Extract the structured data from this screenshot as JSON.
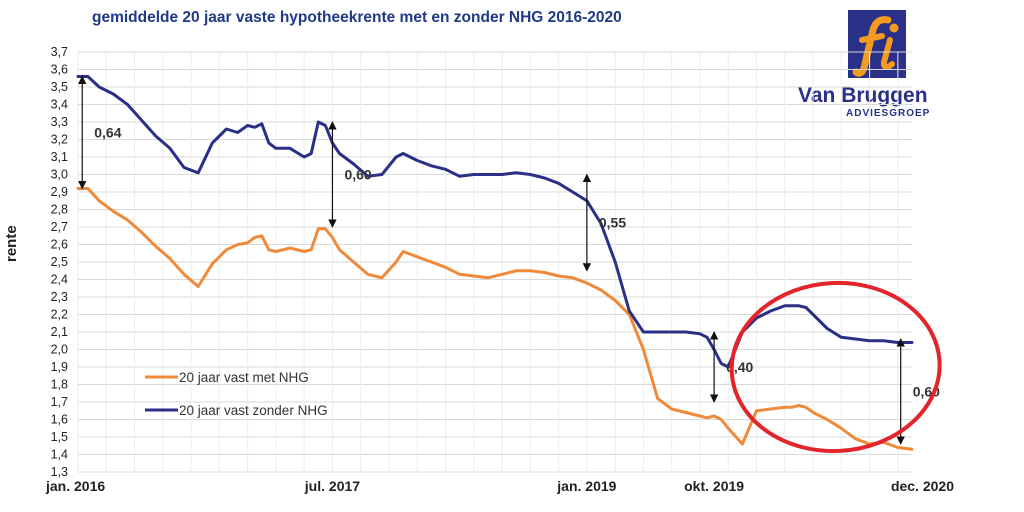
{
  "chart_data": {
    "type": "line",
    "title": "gemiddelde 20 jaar vaste hypotheekrente met en zonder NHG 2016-2020",
    "ylabel": "rente",
    "xlabel": "",
    "ylim": [
      1.3,
      3.7
    ],
    "y_ticks": [
      "1,3",
      "1,4",
      "1,5",
      "1,6",
      "1,7",
      "1,8",
      "1,9",
      "2,0",
      "2,1",
      "2,2",
      "2,3",
      "2,4",
      "2,5",
      "2,6",
      "2,7",
      "2,8",
      "2,9",
      "3,0",
      "3,1",
      "3,2",
      "3,3",
      "3,4",
      "3,5",
      "3,6",
      "3,7"
    ],
    "x_tick_labels": [
      "jan. 2016",
      "jul. 2017",
      "jan. 2019",
      "okt. 2019",
      "dec. 2020"
    ],
    "x_ticks": [
      0,
      18,
      36,
      45,
      59
    ],
    "xlim": [
      0,
      59
    ],
    "grid": true,
    "legend_position": "bottom-left",
    "series": [
      {
        "name": "20 jaar vast met NHG",
        "color": "#f08a3a",
        "x": [
          0,
          0.7,
          1.5,
          2.5,
          3.5,
          4.5,
          5.5,
          6.5,
          7.5,
          8.5,
          9.5,
          10.5,
          11.3,
          12,
          12.5,
          13,
          13.5,
          14,
          15,
          16,
          16.5,
          17,
          17.5,
          18,
          18.5,
          19.5,
          20.5,
          21.5,
          22.5,
          23,
          24,
          25,
          26,
          27,
          28,
          29,
          30,
          31,
          32,
          33,
          34,
          35,
          36,
          37,
          38,
          39,
          40,
          41,
          42,
          43,
          44,
          44.5,
          45,
          45.5,
          46,
          47,
          48,
          49,
          50,
          50.5,
          51,
          51.5,
          52,
          53,
          54,
          55,
          56,
          57,
          58,
          59
        ],
        "y": [
          2.92,
          2.92,
          2.85,
          2.79,
          2.74,
          2.67,
          2.59,
          2.52,
          2.43,
          2.36,
          2.49,
          2.57,
          2.6,
          2.61,
          2.64,
          2.65,
          2.57,
          2.56,
          2.58,
          2.56,
          2.57,
          2.69,
          2.69,
          2.64,
          2.57,
          2.5,
          2.43,
          2.41,
          2.5,
          2.56,
          2.53,
          2.5,
          2.47,
          2.43,
          2.42,
          2.41,
          2.43,
          2.45,
          2.45,
          2.44,
          2.42,
          2.41,
          2.38,
          2.34,
          2.28,
          2.2,
          2.0,
          1.72,
          1.66,
          1.64,
          1.62,
          1.61,
          1.62,
          1.6,
          1.55,
          1.46,
          1.65,
          1.66,
          1.67,
          1.67,
          1.68,
          1.67,
          1.64,
          1.6,
          1.55,
          1.49,
          1.46,
          1.47,
          1.44,
          1.43
        ]
      },
      {
        "name": "20 jaar vast zonder NHG",
        "color": "#2a2f87",
        "x": [
          0,
          0.7,
          1.5,
          2.5,
          3.5,
          4.5,
          5.5,
          6.5,
          7.5,
          8.5,
          9.5,
          10.5,
          11.3,
          12,
          12.5,
          13,
          13.5,
          14,
          15,
          16,
          16.5,
          17,
          17.5,
          18,
          18.5,
          19.5,
          20.5,
          21.5,
          22.5,
          23,
          24,
          25,
          26,
          27,
          28,
          29,
          30,
          31,
          32,
          33,
          34,
          35,
          36,
          37,
          38,
          39,
          40,
          41,
          42,
          43,
          44,
          44.5,
          45,
          45.5,
          46,
          47,
          48,
          49,
          50,
          50.5,
          51,
          51.5,
          52,
          53,
          54,
          55,
          56,
          57,
          58,
          59
        ],
        "y": [
          3.56,
          3.56,
          3.5,
          3.46,
          3.4,
          3.31,
          3.22,
          3.15,
          3.04,
          3.01,
          3.18,
          3.26,
          3.24,
          3.28,
          3.27,
          3.29,
          3.18,
          3.15,
          3.15,
          3.1,
          3.12,
          3.3,
          3.28,
          3.18,
          3.12,
          3.06,
          2.99,
          3.0,
          3.1,
          3.12,
          3.08,
          3.05,
          3.03,
          2.99,
          3.0,
          3.0,
          3.0,
          3.01,
          3.0,
          2.98,
          2.95,
          2.9,
          2.85,
          2.72,
          2.5,
          2.22,
          2.1,
          2.1,
          2.1,
          2.1,
          2.09,
          2.07,
          2.0,
          1.92,
          1.9,
          2.1,
          2.18,
          2.22,
          2.25,
          2.25,
          2.25,
          2.24,
          2.2,
          2.12,
          2.07,
          2.06,
          2.05,
          2.05,
          2.04,
          2.04
        ]
      }
    ],
    "annotations": [
      {
        "label": "0,64",
        "x": 0.3,
        "y_from": 2.92,
        "y_to": 3.56
      },
      {
        "label": "0,60",
        "x": 18,
        "y_from": 2.7,
        "y_to": 3.3
      },
      {
        "label": "0,55",
        "x": 36,
        "y_from": 2.45,
        "y_to": 3.0
      },
      {
        "label": "0,40",
        "x": 45,
        "y_from": 1.7,
        "y_to": 2.1
      },
      {
        "label": "0,60",
        "x": 58.2,
        "y_from": 1.46,
        "y_to": 2.06
      }
    ],
    "highlight": {
      "shape": "ellipse",
      "color": "#e3242b",
      "x_center": 53.6,
      "y_center": 1.9
    }
  },
  "logo": {
    "mark": "fi",
    "name": "Van Bruggen",
    "subtitle": "ADVIESGROEP",
    "box_color": "#2a2f87",
    "accent_color": "#f39b1f"
  }
}
